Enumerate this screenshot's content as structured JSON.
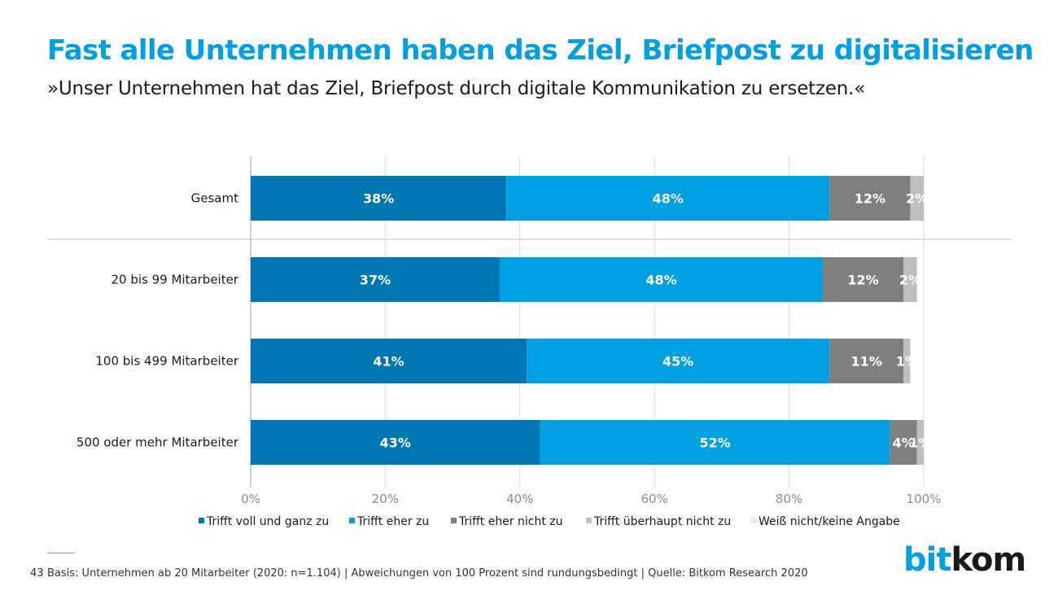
{
  "header": {
    "title": "Fast alle Unternehmen haben das Ziel, Briefpost zu digitalisieren",
    "subtitle": "»Unser Unternehmen hat das Ziel, Briefpost durch digitale Kommunikation zu ersetzen.«"
  },
  "chart_data": {
    "type": "bar",
    "orientation": "horizontal",
    "stacked": true,
    "categories": [
      "Gesamt",
      "20 bis 99 Mitarbeiter",
      "100 bis 499 Mitarbeiter",
      "500 oder mehr Mitarbeiter"
    ],
    "series": [
      {
        "name": "Trifft voll und ganz zu",
        "color": "#0077b3",
        "values": [
          38,
          37,
          41,
          43
        ],
        "labels": [
          "38%",
          "37%",
          "41%",
          "43%"
        ]
      },
      {
        "name": "Trifft eher zu",
        "color": "#00a0e3",
        "values": [
          48,
          48,
          45,
          52
        ],
        "labels": [
          "48%",
          "48%",
          "45%",
          "52%"
        ]
      },
      {
        "name": "Trifft eher nicht zu",
        "color": "#7f7f7f",
        "values": [
          12,
          12,
          11,
          4
        ],
        "labels": [
          "12%",
          "12%",
          "11%",
          "4%"
        ]
      },
      {
        "name": "Trifft überhaupt nicht zu",
        "color": "#bfbfbf",
        "values": [
          2,
          2,
          1,
          1
        ],
        "labels": [
          "2%",
          "2%",
          "1%",
          "1%"
        ]
      },
      {
        "name": "Weiß nicht/keine Angabe",
        "color": "#ececec",
        "values": [
          0,
          0,
          0,
          0
        ],
        "labels": []
      }
    ],
    "xlim": [
      0,
      100
    ],
    "xticks": [
      "0%",
      "20%",
      "40%",
      "60%",
      "80%",
      "100%"
    ],
    "grid": true,
    "legend": "bottom"
  },
  "footer": {
    "page_number": "43",
    "note": "Basis: Unternehmen ab 20 Mitarbeiter (2020: n=1.104) | Abweichungen von 100 Prozent sind rundungsbedingt | Quelle: Bitkom Research 2020",
    "logo_bit": "bit",
    "logo_kom": "kom"
  }
}
